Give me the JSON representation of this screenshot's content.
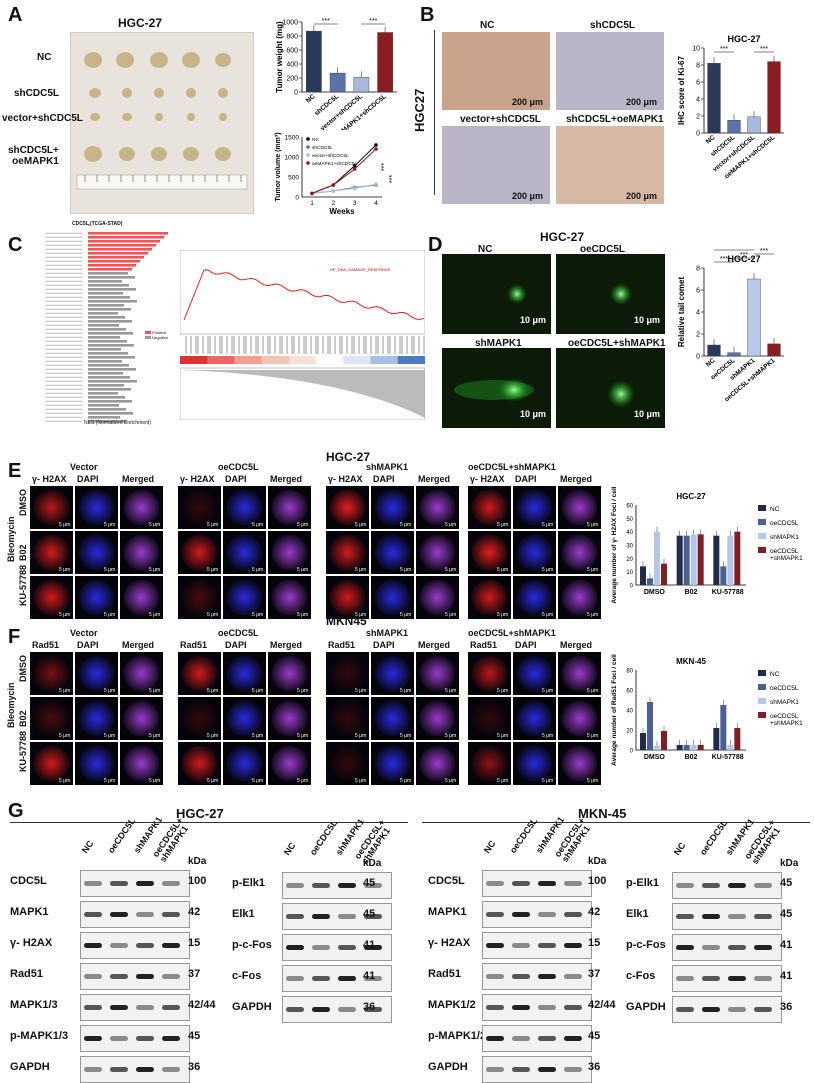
{
  "panelA": {
    "letter": "A",
    "title": "HGC-27",
    "rows": [
      "NC",
      "shCDC5L",
      "vector+shCDC5L",
      "shCDC5L+\noeMAPK1"
    ],
    "weight": {
      "ylabel": "Tumor weight (mg)",
      "sig": [
        "***",
        "***"
      ],
      "cats": [
        "NC",
        "shCDC5L",
        "vector+shCDC5L",
        "oeMAPK1+shCDC5L"
      ],
      "values": [
        870,
        270,
        210,
        850
      ],
      "ylim": [
        0,
        1000
      ],
      "ticks": [
        "0",
        "200",
        "400",
        "600",
        "800",
        "1000"
      ]
    },
    "volume": {
      "ylabel": "Tumor volume (mm³)",
      "xlabel": "Weeks",
      "legend": [
        "NC",
        "shCDC5L",
        "vector+shCDC5L",
        "oeMAPK1+shCDC5L"
      ],
      "x": [
        1,
        2,
        3,
        4
      ],
      "ticks": [
        "0",
        "500",
        "1000",
        "1500"
      ],
      "sig": [
        "***",
        "***"
      ]
    }
  },
  "panelB": {
    "letter": "B",
    "side": "HGC27",
    "labels": [
      "NC",
      "shCDC5L",
      "vector+shCDC5L",
      "shCDC5L+oeMAPK1"
    ],
    "scale": "200 μm",
    "chart": {
      "title": "HGC-27",
      "ylabel": "IHC score of Ki-67",
      "cats": [
        "NC",
        "shCDC5L",
        "vector+shCDC5L",
        "oeMAPK1+shCDC5L"
      ],
      "values": [
        8.2,
        1.5,
        1.9,
        8.4
      ],
      "ticks": [
        "0",
        "2",
        "4",
        "6",
        "8",
        "10"
      ],
      "sig": [
        "***",
        "***"
      ]
    }
  },
  "panelC": {
    "letter": "C",
    "bar_title": "CDC5L (TCGA-STAD)",
    "xlabel": "NES (Normalized Enrichment)",
    "gsea_label": "HP_DNA_DAMAGE_RESPONSE",
    "legend": [
      "Positive",
      "Negative"
    ]
  },
  "panelD": {
    "letter": "D",
    "title": "HGC-27",
    "labels": [
      "NC",
      "oeCDC5L",
      "shMAPK1",
      "oeCDC5L+shMAPK1"
    ],
    "scale": "10 μm",
    "chart": {
      "title": "HGC-27",
      "ylabel": "Relative tail comet",
      "cats": [
        "NC",
        "oeCDC5L",
        "shMAPK1",
        "oeCDC5L+shMAPK1"
      ],
      "values": [
        1.0,
        0.3,
        7.0,
        1.1
      ],
      "ticks": [
        "0",
        "2",
        "4",
        "6",
        "8"
      ],
      "sig": [
        "***",
        "***",
        "***",
        "***"
      ]
    }
  },
  "panelE": {
    "letter": "E",
    "title": "HGC-27",
    "groups": [
      "Vector",
      "oeCDC5L",
      "shMAPK1",
      "oeCDC5L+shMAPK1"
    ],
    "cols": [
      "γ- H2AX",
      "DAPI",
      "Merged"
    ],
    "rows": [
      "DMSO",
      "B02",
      "KU-57788"
    ],
    "side": "Bleomycin",
    "scale": "5 μm",
    "chart": {
      "title": "HGC-27",
      "ylabel": "Average number of γ- H2AX Foci / cell",
      "groups": [
        "DMSO",
        "B02",
        "KU-57788"
      ],
      "legend": [
        "NC",
        "oeCDC5L",
        "shMAPK1",
        "oeCDC5L\n+shMAPK1"
      ],
      "ticks": [
        "0",
        "10",
        "20",
        "30",
        "40",
        "50",
        "60"
      ],
      "series": [
        {
          "name": "NC",
          "values": [
            14,
            37,
            37
          ]
        },
        {
          "name": "oeCDC5L",
          "values": [
            5,
            37,
            14
          ]
        },
        {
          "name": "shMAPK1",
          "values": [
            40,
            38,
            37
          ]
        },
        {
          "name": "oeCDC5L+shMAPK1",
          "values": [
            16,
            38,
            40
          ]
        }
      ]
    }
  },
  "panelF": {
    "letter": "F",
    "title": "MKN45",
    "groups": [
      "Vector",
      "oeCDC5L",
      "shMAPK1",
      "oeCDC5L+shMAPK1"
    ],
    "cols": [
      "Rad51",
      "DAPI",
      "Merged"
    ],
    "rows": [
      "DMSO",
      "B02",
      "KU-57788"
    ],
    "side": "Bleomycin",
    "scale": "5 μm",
    "chart": {
      "title": "MKN-45",
      "ylabel": "Average number of Rad51 Foci / cell",
      "groups": [
        "DMSO",
        "B02",
        "KU-57788"
      ],
      "legend": [
        "NC",
        "oeCDC5L",
        "shMAPK1",
        "oeCDC5L\n+shMAPK1"
      ],
      "ticks": [
        "0",
        "20",
        "40",
        "60",
        "80"
      ],
      "series": [
        {
          "name": "NC",
          "values": [
            17,
            5,
            22
          ]
        },
        {
          "name": "oeCDC5L",
          "values": [
            48,
            5,
            45
          ]
        },
        {
          "name": "shMAPK1",
          "values": [
            4,
            5,
            5
          ]
        },
        {
          "name": "oeCDC5L+shMAPK1",
          "values": [
            19,
            5,
            22
          ]
        }
      ]
    }
  },
  "panelG": {
    "letter": "G",
    "left_title": "HGC-27",
    "right_title": "MKN-45",
    "lanes": [
      "NC",
      "oeCDC5L",
      "shMAPK1",
      "oeCDC5L+\nshMAPK1"
    ],
    "kda": "kDa",
    "blot1": [
      [
        "CDC5L",
        "100"
      ],
      [
        "MAPK1",
        "42"
      ],
      [
        "γ- H2AX",
        "15"
      ],
      [
        "Rad51",
        "37"
      ],
      [
        "MAPK1/3",
        "42/44"
      ],
      [
        "p-MAPK1/3",
        "45"
      ],
      [
        "GAPDH",
        "36"
      ]
    ],
    "blot2": [
      [
        "p-Elk1",
        "45"
      ],
      [
        "Elk1",
        "45"
      ],
      [
        "p-c-Fos",
        "41"
      ],
      [
        "c-Fos",
        "41"
      ],
      [
        "GAPDH",
        "36"
      ]
    ],
    "blot3": [
      [
        "CDC5L",
        "100"
      ],
      [
        "MAPK1",
        "42"
      ],
      [
        "γ- H2AX",
        "15"
      ],
      [
        "Rad51",
        "37"
      ],
      [
        "MAPK1/2",
        "42/44"
      ],
      [
        "p-MAPK1/2",
        "45"
      ],
      [
        "GAPDH",
        "36"
      ]
    ],
    "blot4": [
      [
        "p-Elk1",
        "45"
      ],
      [
        "Elk1",
        "45"
      ],
      [
        "p-c-Fos",
        "41"
      ],
      [
        "c-Fos",
        "41"
      ],
      [
        "GAPDH",
        "36"
      ]
    ]
  }
}
